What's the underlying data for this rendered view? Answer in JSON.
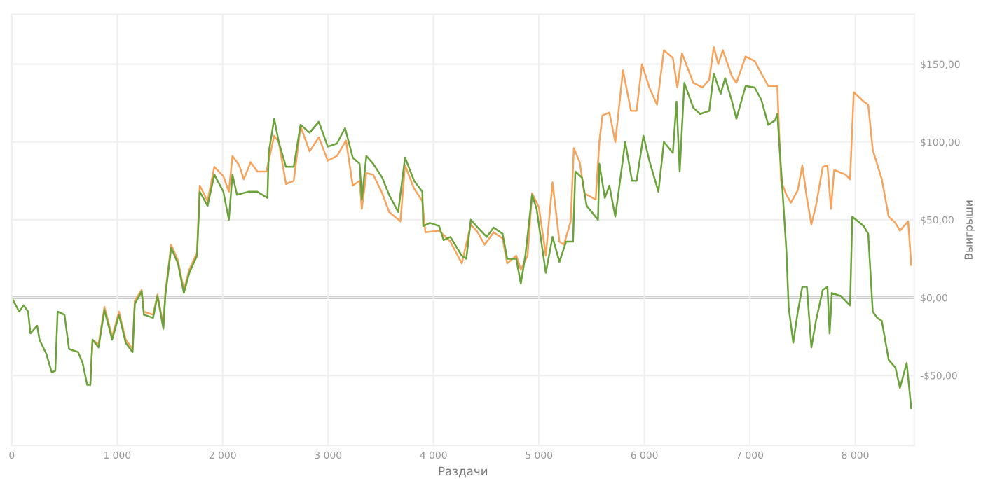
{
  "chart_data": {
    "type": "line",
    "xlabel": "Раздачи",
    "ylabel": "Выигрыши",
    "xlim": [
      0,
      8560
    ],
    "ylim": [
      -95,
      182
    ],
    "xticks": [
      0,
      {
        "value": 1000,
        "label": "1 000"
      },
      {
        "value": 2000,
        "label": "2 000"
      },
      {
        "value": 3000,
        "label": "3 000"
      },
      {
        "value": 4000,
        "label": "4 000"
      },
      {
        "value": 5000,
        "label": "5 000"
      },
      {
        "value": 6000,
        "label": "6 000"
      },
      {
        "value": 7000,
        "label": "7 000"
      },
      {
        "value": 8000,
        "label": "8 000"
      }
    ],
    "yticks": [
      {
        "value": -50,
        "label": "-$50,00"
      },
      {
        "value": 0,
        "label": "$0,00"
      },
      {
        "value": 50,
        "label": "$50,00"
      },
      {
        "value": 100,
        "label": "$100,00"
      },
      {
        "value": 150,
        "label": "$150,00"
      }
    ],
    "grid": true,
    "legend": false,
    "marker": "none",
    "line_style": "solid",
    "ref_lines": [
      {
        "axis": "y",
        "value": 0,
        "label": null,
        "color": "#cccccc"
      }
    ],
    "series": [
      {
        "color": "#f7a35c",
        "x": [
          745,
          766,
          823,
          879,
          952,
          1017,
          1081,
          1146,
          1167,
          1232,
          1253,
          1340,
          1382,
          1438,
          1456,
          1512,
          1576,
          1632,
          1684,
          1757,
          1783,
          1857,
          1921,
          2007,
          2059,
          2093,
          2157,
          2201,
          2265,
          2330,
          2416,
          2437,
          2489,
          2532,
          2601,
          2674,
          2739,
          2825,
          2912,
          2997,
          3084,
          3170,
          3234,
          3299,
          3320,
          3363,
          3428,
          3514,
          3579,
          3686,
          3730,
          3816,
          3894,
          3923,
          4053,
          4160,
          4268,
          4354,
          4419,
          4484,
          4570,
          4655,
          4699,
          4785,
          4828,
          4892,
          4935,
          5000,
          5065,
          5129,
          5194,
          5237,
          5301,
          5331,
          5387,
          5430,
          5538,
          5573,
          5602,
          5668,
          5724,
          5797,
          5873,
          5926,
          5977,
          6047,
          6120,
          6185,
          6270,
          6313,
          6357,
          6464,
          6550,
          6615,
          6658,
          6701,
          6744,
          6831,
          6873,
          6960,
          7046,
          7110,
          7175,
          7261,
          7296,
          7347,
          7390,
          7455,
          7498,
          7541,
          7584,
          7627,
          7692,
          7736,
          7770,
          7800,
          7908,
          7951,
          7986,
          8080,
          8123,
          8166,
          8252,
          8317,
          8381,
          8424,
          8502,
          8531
        ],
        "values": [
          -56,
          -27,
          -30,
          -6,
          -25,
          -9,
          -27,
          -33,
          -2,
          5,
          -9,
          -11,
          2,
          -18,
          3,
          34,
          24,
          5,
          18,
          29,
          72,
          62,
          84,
          78,
          68,
          91,
          85,
          76,
          87,
          81,
          81,
          88,
          104,
          100,
          73,
          75,
          110,
          94,
          103,
          88,
          91,
          101,
          72,
          75,
          57,
          80,
          79,
          67,
          55,
          49,
          85,
          70,
          62,
          42,
          43,
          36,
          22,
          47,
          42,
          34,
          42,
          38,
          22,
          27,
          18,
          27,
          67,
          58,
          27,
          74,
          36,
          34,
          49,
          96,
          87,
          67,
          63,
          100,
          117,
          119,
          100,
          146,
          120,
          120,
          150,
          135,
          124,
          159,
          154,
          135,
          157,
          138,
          135,
          140,
          161,
          150,
          159,
          142,
          138,
          155,
          152,
          144,
          136,
          136,
          75,
          66,
          61,
          69,
          85,
          64,
          47,
          59,
          84,
          85,
          57,
          82,
          79,
          76,
          132,
          126,
          124,
          95,
          76,
          52,
          48,
          43,
          49,
          21
        ]
      },
      {
        "color": "#6aa33a",
        "x": [
          0,
          70,
          112,
          155,
          177,
          241,
          263,
          327,
          379,
          413,
          435,
          500,
          543,
          629,
          672,
          715,
          745,
          766,
          823,
          879,
          952,
          1017,
          1081,
          1146,
          1167,
          1232,
          1253,
          1340,
          1382,
          1438,
          1456,
          1512,
          1576,
          1632,
          1684,
          1757,
          1783,
          1857,
          1921,
          2007,
          2059,
          2093,
          2136,
          2244,
          2330,
          2425,
          2437,
          2489,
          2532,
          2601,
          2674,
          2739,
          2825,
          2912,
          2997,
          3084,
          3161,
          3234,
          3299,
          3320,
          3363,
          3428,
          3514,
          3579,
          3665,
          3730,
          3816,
          3894,
          3902,
          3966,
          4053,
          4096,
          4160,
          4268,
          4311,
          4354,
          4419,
          4505,
          4570,
          4655,
          4699,
          4785,
          4828,
          4871,
          4935,
          4978,
          5065,
          5129,
          5194,
          5258,
          5323,
          5345,
          5409,
          5452,
          5560,
          5573,
          5625,
          5668,
          5724,
          5818,
          5883,
          5926,
          5991,
          6047,
          6133,
          6185,
          6270,
          6305,
          6335,
          6379,
          6464,
          6529,
          6615,
          6658,
          6723,
          6766,
          6831,
          6873,
          6960,
          7046,
          7110,
          7175,
          7240,
          7261,
          7304,
          7347,
          7368,
          7412,
          7455,
          7498,
          7541,
          7584,
          7627,
          7692,
          7736,
          7757,
          7778,
          7865,
          7951,
          7972,
          8080,
          8123,
          8166,
          8209,
          8252,
          8317,
          8381,
          8424,
          8488,
          8531
        ],
        "values": [
          0,
          -9,
          -5,
          -9,
          -23,
          -18,
          -27,
          -36,
          -48,
          -47,
          -9,
          -11,
          -33,
          -35,
          -42,
          -56,
          -56,
          -27,
          -32,
          -8,
          -27,
          -11,
          -29,
          -35,
          -4,
          4,
          -11,
          -13,
          1,
          -20,
          1,
          32,
          22,
          3,
          16,
          27,
          68,
          59,
          79,
          68,
          50,
          79,
          66,
          68,
          68,
          64,
          93,
          115,
          100,
          84,
          84,
          111,
          106,
          113,
          97,
          99,
          109,
          90,
          86,
          63,
          91,
          86,
          77,
          66,
          55,
          90,
          75,
          68,
          46,
          48,
          46,
          37,
          39,
          27,
          25,
          50,
          45,
          39,
          45,
          41,
          25,
          25,
          9,
          27,
          66,
          57,
          16,
          39,
          23,
          36,
          36,
          81,
          77,
          59,
          50,
          86,
          64,
          72,
          52,
          100,
          75,
          75,
          104,
          88,
          68,
          100,
          93,
          126,
          81,
          138,
          122,
          118,
          120,
          144,
          131,
          141,
          126,
          115,
          136,
          135,
          127,
          111,
          114,
          118,
          75,
          30,
          -6,
          -29,
          -9,
          7,
          7,
          -32,
          -15,
          5,
          7,
          -23,
          3,
          1,
          -5,
          52,
          46,
          41,
          -9,
          -13,
          -15,
          -40,
          -45,
          -58,
          -42,
          -71
        ]
      }
    ]
  }
}
